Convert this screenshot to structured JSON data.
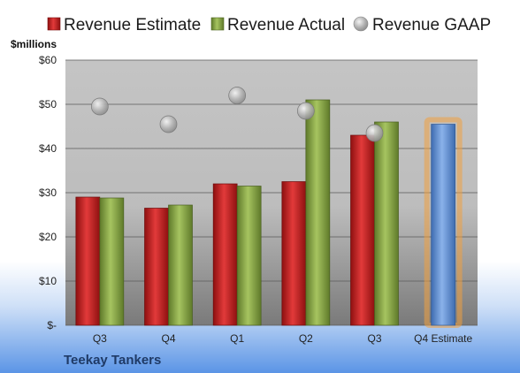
{
  "chart_data": {
    "type": "bar",
    "title": "",
    "company": "Teekay Tankers",
    "ylabel": "$millions",
    "ylim": [
      0,
      60
    ],
    "yticks": [
      0,
      10,
      20,
      30,
      40,
      50,
      60
    ],
    "ytick_labels": [
      "$-",
      "$10",
      "$20",
      "$30",
      "$40",
      "$50",
      "$60"
    ],
    "categories": [
      "Q3",
      "Q4",
      "Q1",
      "Q2",
      "Q3",
      "Q4 Estimate"
    ],
    "legend_position": "top",
    "grid": true,
    "series": [
      {
        "name": "Revenue Estimate",
        "kind": "bar",
        "color": "#cc2222",
        "values": [
          29,
          26.5,
          32,
          32.5,
          43,
          null
        ]
      },
      {
        "name": "Revenue Actual",
        "kind": "bar",
        "color": "#8aaa44",
        "values": [
          28.8,
          27.2,
          31.5,
          51,
          46,
          null
        ]
      },
      {
        "name": "Revenue GAAP",
        "kind": "scatter",
        "color": "#b8b8b8",
        "values": [
          49.5,
          45.5,
          52,
          48.5,
          43.5,
          null
        ]
      }
    ],
    "highlight": {
      "category": "Q4 Estimate",
      "value": 45.5,
      "color": "#6a98d8",
      "glow": "#f0a040"
    }
  }
}
